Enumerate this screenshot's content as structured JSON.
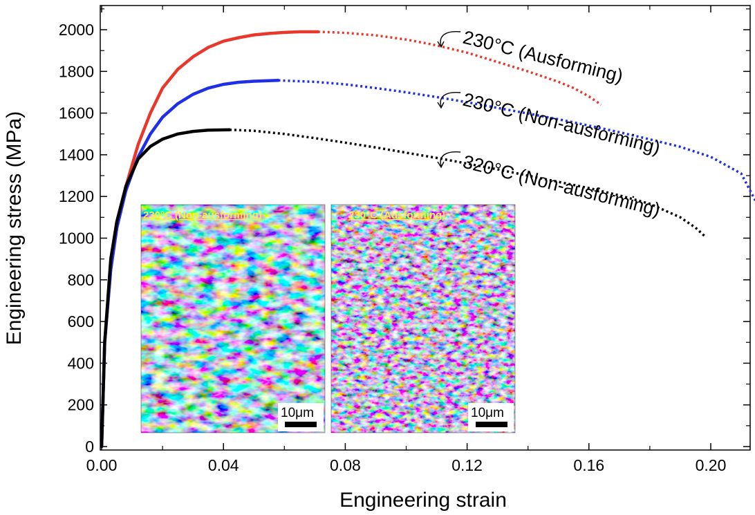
{
  "chart_data": {
    "type": "line",
    "xlabel": "Engineering strain",
    "ylabel": "Engineering stress (MPa)",
    "xlim": [
      0.0,
      0.22
    ],
    "ylim": [
      0,
      2120
    ],
    "xticks": [
      0.0,
      0.04,
      0.08,
      0.12,
      0.16,
      0.2
    ],
    "xtick_labels": [
      "0.00",
      "0.04",
      "0.08",
      "0.12",
      "0.16",
      "0.20"
    ],
    "yticks": [
      0,
      200,
      400,
      600,
      800,
      1000,
      1200,
      1400,
      1600,
      1800,
      2000
    ],
    "ytick_labels": [
      "0",
      "200",
      "400",
      "600",
      "800",
      "1000",
      "1200",
      "1400",
      "1600",
      "1800",
      "2000"
    ],
    "grid": false,
    "series": [
      {
        "name": "230°C (Ausforming)",
        "color": "#e8382c",
        "solid_until": 0.071,
        "x": [
          0,
          0.001,
          0.003,
          0.005,
          0.008,
          0.012,
          0.016,
          0.02,
          0.025,
          0.03,
          0.035,
          0.04,
          0.045,
          0.05,
          0.055,
          0.06,
          0.065,
          0.071,
          0.08,
          0.09,
          0.1,
          0.11,
          0.12,
          0.13,
          0.14,
          0.15,
          0.155,
          0.16,
          0.164
        ],
        "y": [
          0,
          500,
          850,
          1050,
          1250,
          1450,
          1600,
          1720,
          1810,
          1870,
          1915,
          1945,
          1962,
          1975,
          1982,
          1987,
          1990,
          1990,
          1985,
          1973,
          1953,
          1925,
          1890,
          1845,
          1800,
          1750,
          1720,
          1680,
          1640
        ]
      },
      {
        "name": "230°C (Non-ausforming)",
        "color": "#1f2fe8",
        "solid_until": 0.058,
        "x": [
          0,
          0.001,
          0.003,
          0.005,
          0.008,
          0.012,
          0.016,
          0.02,
          0.025,
          0.03,
          0.035,
          0.04,
          0.045,
          0.05,
          0.058,
          0.07,
          0.08,
          0.09,
          0.1,
          0.11,
          0.12,
          0.13,
          0.14,
          0.15,
          0.16,
          0.17,
          0.18,
          0.19,
          0.2,
          0.21,
          0.215
        ],
        "y": [
          0,
          500,
          850,
          1050,
          1230,
          1390,
          1500,
          1580,
          1645,
          1690,
          1720,
          1738,
          1748,
          1753,
          1757,
          1750,
          1738,
          1720,
          1700,
          1677,
          1652,
          1625,
          1598,
          1570,
          1540,
          1508,
          1474,
          1438,
          1390,
          1310,
          1170
        ]
      },
      {
        "name": "320°C (Non-ausforming)",
        "color": "#000000",
        "solid_until": 0.042,
        "x": [
          0,
          0.001,
          0.003,
          0.005,
          0.008,
          0.012,
          0.016,
          0.02,
          0.025,
          0.03,
          0.035,
          0.042,
          0.05,
          0.06,
          0.07,
          0.08,
          0.09,
          0.1,
          0.11,
          0.12,
          0.13,
          0.14,
          0.15,
          0.16,
          0.17,
          0.18,
          0.19,
          0.195,
          0.198
        ],
        "y": [
          0,
          500,
          900,
          1080,
          1250,
          1380,
          1440,
          1475,
          1500,
          1512,
          1518,
          1520,
          1515,
          1500,
          1480,
          1458,
          1435,
          1410,
          1385,
          1358,
          1330,
          1300,
          1270,
          1240,
          1205,
          1165,
          1100,
          1050,
          1010
        ]
      }
    ],
    "annotations": [
      {
        "text": "230°C (Ausforming)",
        "series": 0
      },
      {
        "text": "230°C (Non-ausforming)",
        "series": 1
      },
      {
        "text": "320°C (Non-ausforming)",
        "series": 2
      }
    ],
    "insets": [
      {
        "label": "230°C (Non-ausforming)",
        "scale_bar": "10μm"
      },
      {
        "label": "230°C (Ausforming)",
        "scale_bar": "10μm"
      }
    ]
  }
}
